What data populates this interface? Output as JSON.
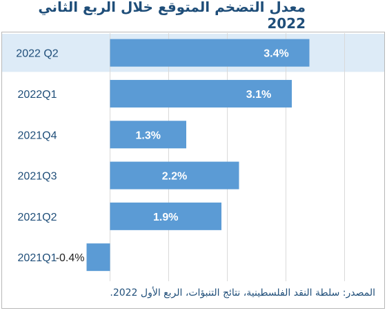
{
  "title": "معدل التضخم المتوقع خلال الربع الثاني 2022",
  "source": "المصدر: سلطة النقد الفلسطينية، نتائج التنبؤات، الربع الأول 2022.",
  "chart_data": {
    "type": "bar",
    "orientation": "horizontal",
    "categories": [
      "2022 Q2",
      "2022Q1",
      "2021Q4",
      "2021Q3",
      "2021Q2",
      "2021Q1"
    ],
    "values": [
      3.4,
      3.1,
      1.3,
      2.2,
      1.9,
      -0.4
    ],
    "data_labels": [
      "3.4%",
      "3.1%",
      "1.3%",
      "2.2%",
      "1.9%",
      "-0.4%"
    ],
    "highlighted_category": "2022 Q2",
    "xlim": [
      -0.5,
      4.5
    ],
    "grid": true,
    "colors": {
      "bar": "#5b9bd5",
      "highlight_band": "#ddebf7",
      "category_text": "#1f4e79",
      "grid": "#d9d9d9"
    }
  }
}
